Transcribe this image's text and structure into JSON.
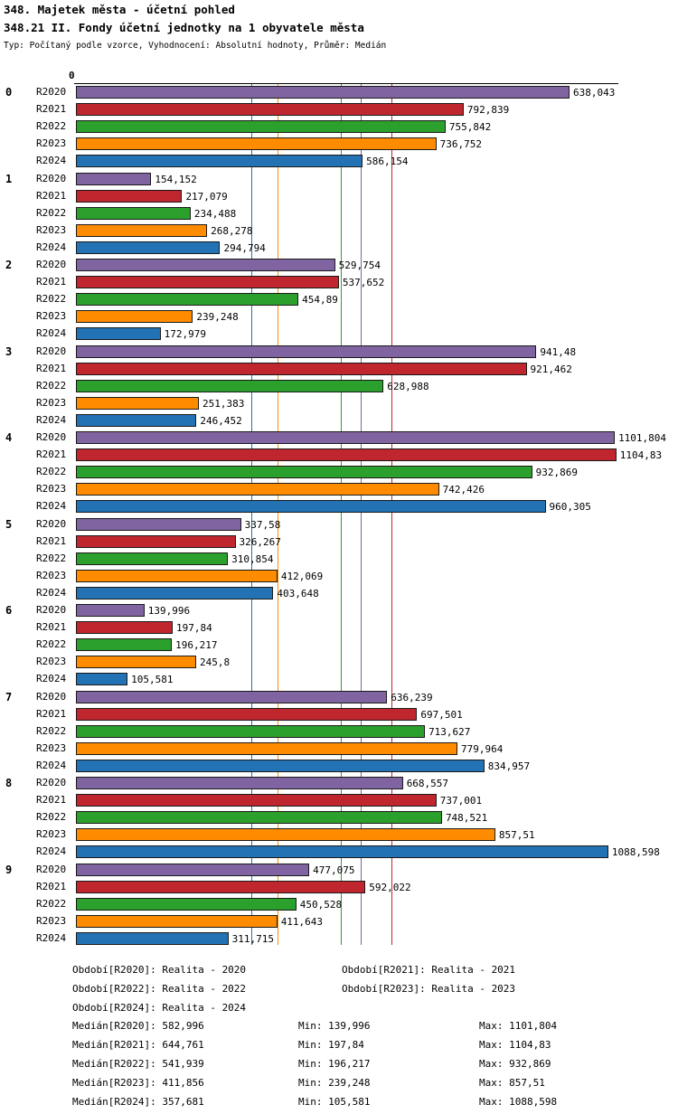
{
  "header": {
    "title": "348. Majetek města - účetní pohled",
    "subtitle": "348.21 II. Fondy účetní jednotky na 1 obyvatele města",
    "meta": "Typ: Počítaný podle vzorce, Vyhodnocení: Absolutní hodnoty, Průměr: Medián"
  },
  "chart_data": {
    "type": "bar",
    "orientation": "horizontal",
    "title": "348.21 II. Fondy účetní jednotky na 1 obyvatele města",
    "xlabel": "",
    "ylabel": "",
    "xlim": [
      0,
      1113
    ],
    "grid": "median-lines-per-series",
    "legend_position": "bottom",
    "axis_zero_label": "0",
    "series": [
      "R2020",
      "R2021",
      "R2022",
      "R2023",
      "R2024"
    ],
    "colors": {
      "R2020": "#8064a2",
      "R2021": "#c0262e",
      "R2022": "#2ca02c",
      "R2023": "#ff8c00",
      "R2024": "#2272b4"
    },
    "groups": [
      {
        "label": "0",
        "values": [
          638.043,
          792.839,
          755.842,
          736.752,
          586.154
        ],
        "display": [
          "638,043",
          "792,839",
          "755,842",
          "736,752",
          "586,154"
        ]
      },
      {
        "label": "1",
        "values": [
          154.152,
          217.079,
          234.488,
          268.278,
          294.794
        ],
        "display": [
          "154,152",
          "217,079",
          "234,488",
          "268,278",
          "294,794"
        ]
      },
      {
        "label": "2",
        "values": [
          529.754,
          537.652,
          454.89,
          239.248,
          172.979
        ],
        "display": [
          "529,754",
          "537,652",
          "454,89",
          "239,248",
          "172,979"
        ]
      },
      {
        "label": "3",
        "values": [
          941.48,
          921.462,
          628.988,
          251.383,
          246.452
        ],
        "display": [
          "941,48",
          "921,462",
          "628,988",
          "251,383",
          "246,452"
        ]
      },
      {
        "label": "4",
        "values": [
          1101.804,
          1104.83,
          932.869,
          742.426,
          960.305
        ],
        "display": [
          "1101,804",
          "1104,83",
          "932,869",
          "742,426",
          "960,305"
        ]
      },
      {
        "label": "5",
        "values": [
          337.58,
          326.267,
          310.854,
          412.069,
          403.648
        ],
        "display": [
          "337,58",
          "326,267",
          "310,854",
          "412,069",
          "403,648"
        ]
      },
      {
        "label": "6",
        "values": [
          139.996,
          197.84,
          196.217,
          245.8,
          105.581
        ],
        "display": [
          "139,996",
          "197,84",
          "196,217",
          "245,8",
          "105,581"
        ]
      },
      {
        "label": "7",
        "values": [
          636.239,
          697.501,
          713.627,
          779.964,
          834.957
        ],
        "display": [
          "636,239",
          "697,501",
          "713,627",
          "779,964",
          "834,957"
        ]
      },
      {
        "label": "8",
        "values": [
          668.557,
          737.001,
          748.521,
          857.51,
          1088.598
        ],
        "display": [
          "668,557",
          "737,001",
          "748,521",
          "857,51",
          "1088,598"
        ]
      },
      {
        "label": "9",
        "values": [
          477.075,
          592.022,
          450.528,
          411.643,
          311.715
        ],
        "display": [
          "477,075",
          "592,022",
          "450,528",
          "411,643",
          "311,715"
        ]
      }
    ],
    "medians": {
      "R2020": 582.996,
      "R2021": 644.761,
      "R2022": 541.939,
      "R2023": 411.856,
      "R2024": 357.681
    }
  },
  "legend": {
    "items": [
      "Období[R2020]: Realita - 2020",
      "Období[R2021]: Realita - 2021",
      "Období[R2022]: Realita - 2022",
      "Období[R2023]: Realita - 2023",
      "Období[R2024]: Realita - 2024"
    ]
  },
  "stats": {
    "rows": [
      {
        "median": "Medián[R2020]: 582,996",
        "min": "Min: 139,996",
        "max": "Max: 1101,804"
      },
      {
        "median": "Medián[R2021]: 644,761",
        "min": "Min: 197,84",
        "max": "Max: 1104,83"
      },
      {
        "median": "Medián[R2022]: 541,939",
        "min": "Min: 196,217",
        "max": "Max: 932,869"
      },
      {
        "median": "Medián[R2023]: 411,856",
        "min": "Min: 239,248",
        "max": "Max: 857,51"
      },
      {
        "median": "Medián[R2024]: 357,681",
        "min": "Min: 105,581",
        "max": "Max: 1088,598"
      }
    ]
  }
}
